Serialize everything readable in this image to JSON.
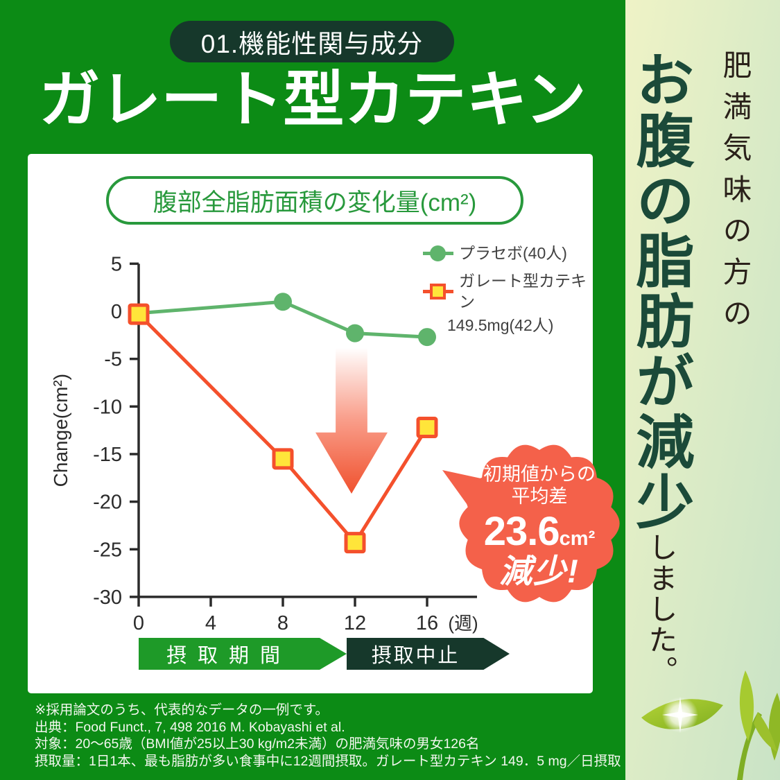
{
  "header": {
    "badge_label": "01.機能性関与成分",
    "title": "ガレート型カテキン"
  },
  "chart_card": {
    "title_pill": "腹部全脂肪面積の変化量(cm²)",
    "legend": [
      {
        "label": "プラセボ(40人)",
        "marker": "circle",
        "color": "#5fb46c"
      },
      {
        "label": "ガレート型カテキン",
        "sublabel": "149.5mg(42人)",
        "marker": "square",
        "line_color": "#f4502c",
        "marker_fill": "#ffe53a"
      }
    ],
    "period_banners": [
      {
        "label": "摂取期間",
        "color": "#1e9a28"
      },
      {
        "label": "摂取中止",
        "color": "#16382b"
      }
    ]
  },
  "chart_data": {
    "type": "line",
    "title": "腹部全脂肪面積の変化量(cm²)",
    "ylabel": "Change(cm²)",
    "x_unit": "(週)",
    "x_ticks": [
      0,
      4,
      8,
      12,
      16
    ],
    "y_ticks": [
      5,
      0,
      -5,
      -10,
      -15,
      -20,
      -25,
      -30
    ],
    "ylim": [
      -30,
      5
    ],
    "x": [
      0,
      8,
      12,
      16
    ],
    "series": [
      {
        "name": "プラセボ(40人)",
        "values": [
          -0.2,
          1.0,
          -2.3,
          -2.7
        ],
        "line_color": "#5fb46c",
        "marker": "circle",
        "marker_fill": "#5fb46c"
      },
      {
        "name": "ガレート型カテキン 149.5mg(42人)",
        "values": [
          -0.3,
          -15.5,
          -24.3,
          -12.2
        ],
        "line_color": "#f4502c",
        "marker": "square",
        "marker_fill": "#ffe53a"
      }
    ],
    "annotation": {
      "line1": "初期値からの",
      "line2": "平均差",
      "value": "23.6",
      "unit": "cm²",
      "emphasis": "減少!",
      "color": "#f4614a"
    },
    "legend_position": "top-right",
    "grid": false
  },
  "footnotes": [
    "※採用論文のうち、代表的なデータの一例です。",
    "出典：Food Funct., 7, 498 2016 M. Kobayashi et al.",
    "対象：20～65歳（BMI値が25以上30 kg/m2未満）の肥満気味の男女126名",
    "摂取量：1日1本、最も脂肪が多い食事中に12週間摂取。ガレート型カテキン 149．5 mg／日摂取"
  ],
  "sidebar": {
    "lead": "肥満気味の方の",
    "headline": "お腹の脂肪が減少",
    "suffix": "しました。"
  },
  "colors": {
    "background_green": "#0c8b15",
    "dark_green": "#16382b",
    "pill_green": "#28993c",
    "placebo_green": "#5fb46c",
    "catechin_red": "#f4502c",
    "marker_yellow": "#ffe53a",
    "callout_orange": "#f4614a"
  }
}
